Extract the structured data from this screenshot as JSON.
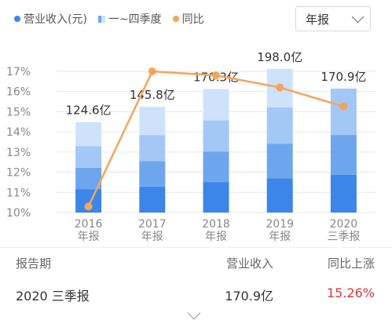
{
  "legend": {
    "revenue": "营业收入(元)",
    "quarters": "一~四季度",
    "yoy": "同比"
  },
  "period_select": {
    "value": "年报"
  },
  "colors": {
    "q1": "#3b86e8",
    "q2": "#6ea6ee",
    "q3": "#a4c8f5",
    "q4": "#cfe2fb",
    "line": "#f5a55a",
    "axis_text": "#888888",
    "grid": "#e6e6e6"
  },
  "chart_data": {
    "type": "bar",
    "categories": [
      "2016\n年报",
      "2017\n年报",
      "2018\n年报",
      "2019\n年报",
      "2020\n三季报"
    ],
    "bar_labels": [
      "124.6亿",
      "145.8亿",
      "170.3亿",
      "198.0亿",
      "170.9亿"
    ],
    "revenue": [
      124.6,
      145.8,
      170.3,
      198.0,
      170.9
    ],
    "quarters": [
      {
        "name": "Q1",
        "values": [
          32,
          36,
          42,
          47,
          52
        ]
      },
      {
        "name": "Q2",
        "values": [
          30,
          35,
          42,
          48,
          55
        ]
      },
      {
        "name": "Q3",
        "values": [
          30,
          36,
          43,
          50,
          64
        ]
      },
      {
        "name": "Q4",
        "values": [
          33,
          39,
          43,
          53,
          0
        ]
      }
    ],
    "yoy": {
      "name": "同比",
      "values": [
        10.3,
        17.0,
        16.8,
        16.2,
        15.26
      ]
    },
    "y_ticks": [
      "10%",
      "11%",
      "12%",
      "13%",
      "14%",
      "15%",
      "16%",
      "17%"
    ],
    "ylim": [
      10,
      17
    ],
    "grid": true
  },
  "table": {
    "headers": [
      "报告期",
      "营业收入",
      "同比上涨"
    ],
    "row": {
      "period": "2020 三季报",
      "revenue": "170.9亿",
      "change": "15.26%"
    }
  }
}
